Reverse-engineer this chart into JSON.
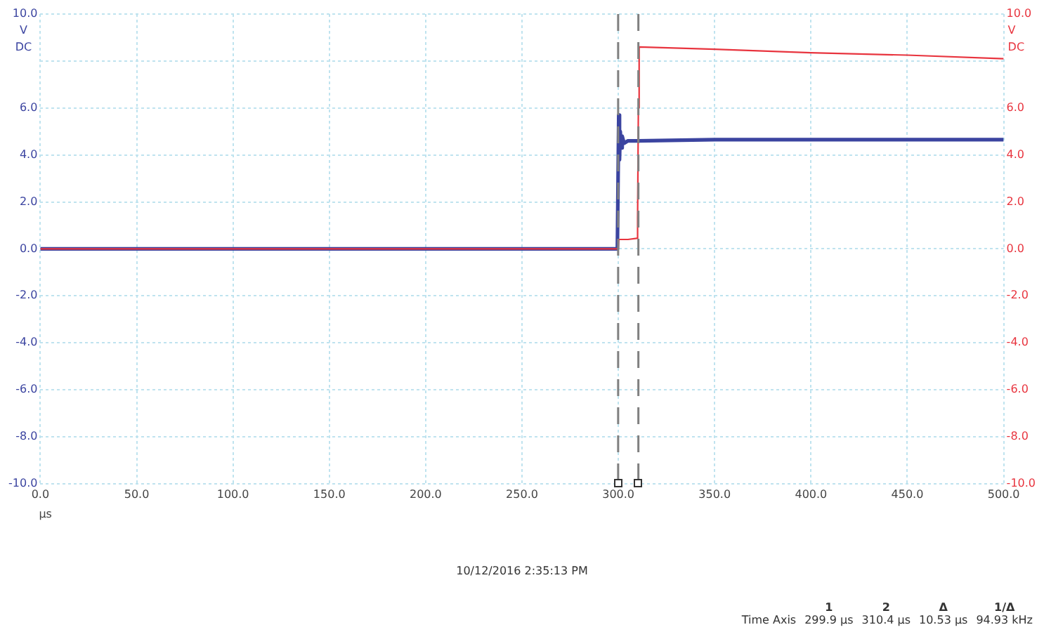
{
  "chart_data": {
    "type": "line",
    "xlabel": "µs",
    "ylabel": "V DC",
    "y2label": "V DC",
    "xlim": [
      0,
      500
    ],
    "xticks": [
      {
        "value": 0,
        "label": "0.0"
      },
      {
        "value": 50,
        "label": "50.0"
      },
      {
        "value": 100,
        "label": "100.0"
      },
      {
        "value": 150,
        "label": "150.0"
      },
      {
        "value": 200,
        "label": "200.0"
      },
      {
        "value": 250,
        "label": "250.0"
      },
      {
        "value": 300,
        "label": "300.0"
      },
      {
        "value": 350,
        "label": "350.0"
      },
      {
        "value": 400,
        "label": "400.0"
      },
      {
        "value": 450,
        "label": "450.0"
      },
      {
        "value": 500,
        "label": "500.0"
      }
    ],
    "ylim": [
      -10,
      10
    ],
    "yticks": [
      {
        "value": -10,
        "label": "-10.0"
      },
      {
        "value": -8,
        "label": "-8.0"
      },
      {
        "value": -6,
        "label": "-6.0"
      },
      {
        "value": -4,
        "label": "-4.0"
      },
      {
        "value": -2,
        "label": "-2.0"
      },
      {
        "value": 0,
        "label": "0.0"
      },
      {
        "value": 2,
        "label": "2.0"
      },
      {
        "value": 4,
        "label": "4.0"
      },
      {
        "value": 6,
        "label": "6.0"
      },
      {
        "value": 8,
        "label": null
      },
      {
        "value": 10,
        "label": "10.0"
      }
    ],
    "y2lim": [
      -10,
      10
    ],
    "y2ticks": [
      {
        "value": -10,
        "label": "-10.0"
      },
      {
        "value": -8,
        "label": "-8.0"
      },
      {
        "value": -6,
        "label": "-6.0"
      },
      {
        "value": -4,
        "label": "-4.0"
      },
      {
        "value": -2,
        "label": "-2.0"
      },
      {
        "value": 0,
        "label": "0.0"
      },
      {
        "value": 2,
        "label": "2.0"
      },
      {
        "value": 4,
        "label": "4.0"
      },
      {
        "value": 6,
        "label": "6.0"
      },
      {
        "value": 8,
        "label": null
      },
      {
        "value": 10,
        "label": "10.0"
      }
    ],
    "grid": true,
    "legend": false,
    "marker": "none",
    "line_style": "solid",
    "series": [
      {
        "color": "#3b44a0",
        "x": [
          0,
          100,
          200,
          299.5,
          299.9,
          300.2,
          300.6,
          301,
          301.5,
          302,
          303,
          305,
          310,
          350,
          400,
          450,
          500
        ],
        "values": [
          0,
          0,
          0,
          0,
          0,
          5.7,
          3.8,
          5.0,
          4.3,
          4.8,
          4.5,
          4.6,
          4.6,
          4.65,
          4.65,
          4.65,
          4.65
        ]
      },
      {
        "color": "#e8343e",
        "axis": "y2",
        "x": [
          0,
          100,
          200,
          299.9,
          300.2,
          305,
          309.6,
          310,
          310.4,
          310.8,
          350,
          400,
          450,
          500
        ],
        "values": [
          0,
          0,
          0,
          0,
          0.4,
          0.4,
          0.45,
          1.3,
          6.0,
          8.6,
          8.5,
          8.35,
          8.25,
          8.1
        ]
      }
    ],
    "ref_lines": [
      {
        "axis": "x",
        "value": 299.9,
        "color": "#808080",
        "line_style": "dashed"
      },
      {
        "axis": "x",
        "value": 310.4,
        "color": "#808080",
        "line_style": "dashed"
      }
    ],
    "annotations": [
      "10/12/2016 2:35:13 PM",
      "1",
      "2",
      "Δ",
      "1/Δ",
      "Time Axis",
      "299.9 µs",
      "310.4 µs",
      "10.53 µs",
      "94.93 kHz"
    ]
  }
}
